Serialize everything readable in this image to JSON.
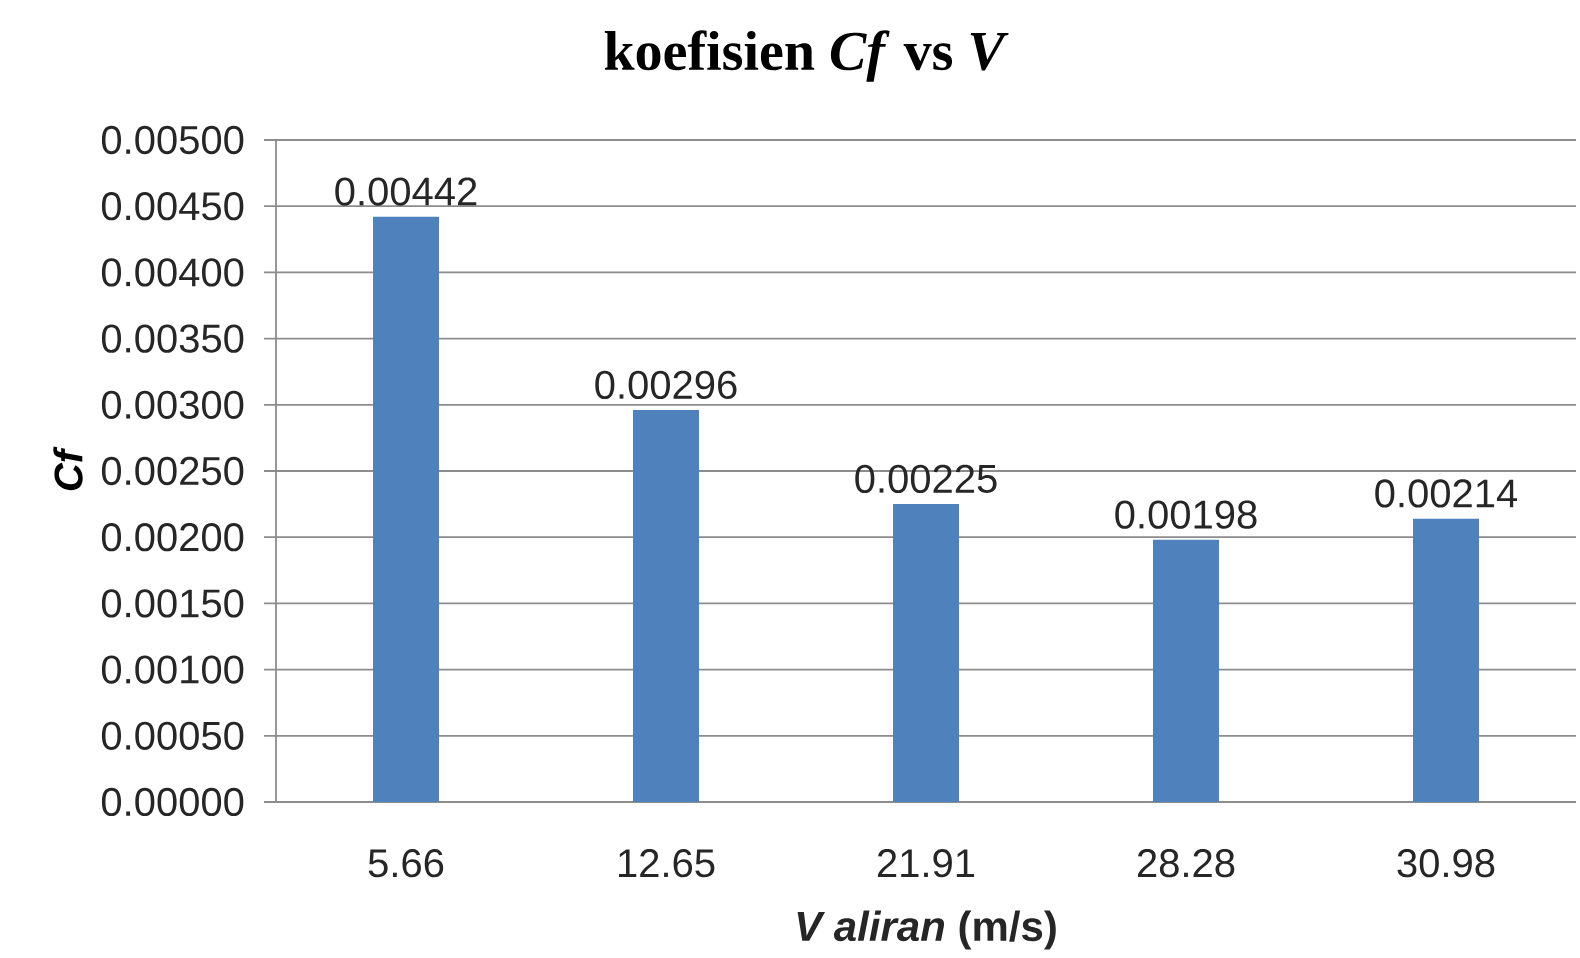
{
  "chart_data": {
    "type": "bar",
    "title": "koefisien *Cf* vs *V*",
    "xlabel": "*V aliran* (m/s)",
    "ylabel": "Cf",
    "categories": [
      "5.66",
      "12.65",
      "21.91",
      "28.28",
      "30.98"
    ],
    "values": [
      0.00442,
      0.00296,
      0.00225,
      0.00198,
      0.00214
    ],
    "value_labels": [
      "0.00442",
      "0.00296",
      "0.00225",
      "0.00198",
      "0.00214"
    ],
    "color": "#4f81bd",
    "ylim": [
      0,
      0.005
    ],
    "yticks": [
      {
        "value": 0,
        "label": "0.00000"
      },
      {
        "value": 0.0005,
        "label": "0.00050"
      },
      {
        "value": 0.001,
        "label": "0.00100"
      },
      {
        "value": 0.0015,
        "label": "0.00150"
      },
      {
        "value": 0.002,
        "label": "0.00200"
      },
      {
        "value": 0.0025,
        "label": "0.00250"
      },
      {
        "value": 0.003,
        "label": "0.00300"
      },
      {
        "value": 0.0035,
        "label": "0.00350"
      },
      {
        "value": 0.004,
        "label": "0.00400"
      },
      {
        "value": 0.0045,
        "label": "0.00450"
      },
      {
        "value": 0.005,
        "label": "0.00500"
      }
    ],
    "grid": "y"
  }
}
